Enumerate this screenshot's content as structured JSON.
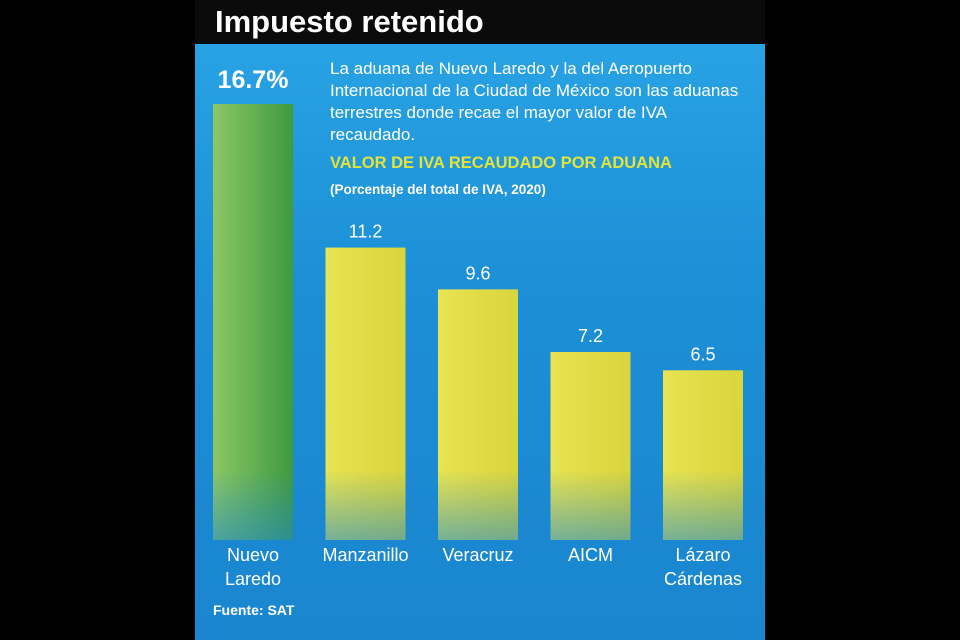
{
  "title": "Impuesto retenido",
  "description": "La aduana de Nuevo Laredo y la del Aeropuerto Internacional de la Ciudad de México son las aduanas terrestres donde recae el mayor valor de IVA recaudado.",
  "source": "Fuente: SAT",
  "colors": {
    "background": "#1c8fd6",
    "header": "#0b0b0b",
    "highlight_bar": "#5aae4a",
    "bar": "#e3e04a",
    "subtitle": "#e3e33a"
  },
  "chart_data": {
    "type": "bar",
    "title": "VALOR DE IVA RECAUDADO POR ADUANA",
    "subtitle": "(Porcentaje del total de IVA, 2020)",
    "categories": [
      [
        "Nuevo",
        "Laredo"
      ],
      [
        "Manzanillo"
      ],
      [
        "Veracruz"
      ],
      [
        "AICM"
      ],
      [
        "Lázaro",
        "Cárdenas"
      ]
    ],
    "values": [
      16.7,
      11.2,
      9.6,
      7.2,
      6.5
    ],
    "value_labels": [
      "16.7%",
      "11.2",
      "9.6",
      "7.2",
      "6.5"
    ],
    "highlight_index": 0,
    "xlabel": "",
    "ylabel": "",
    "ylim": [
      0,
      16.7
    ]
  }
}
